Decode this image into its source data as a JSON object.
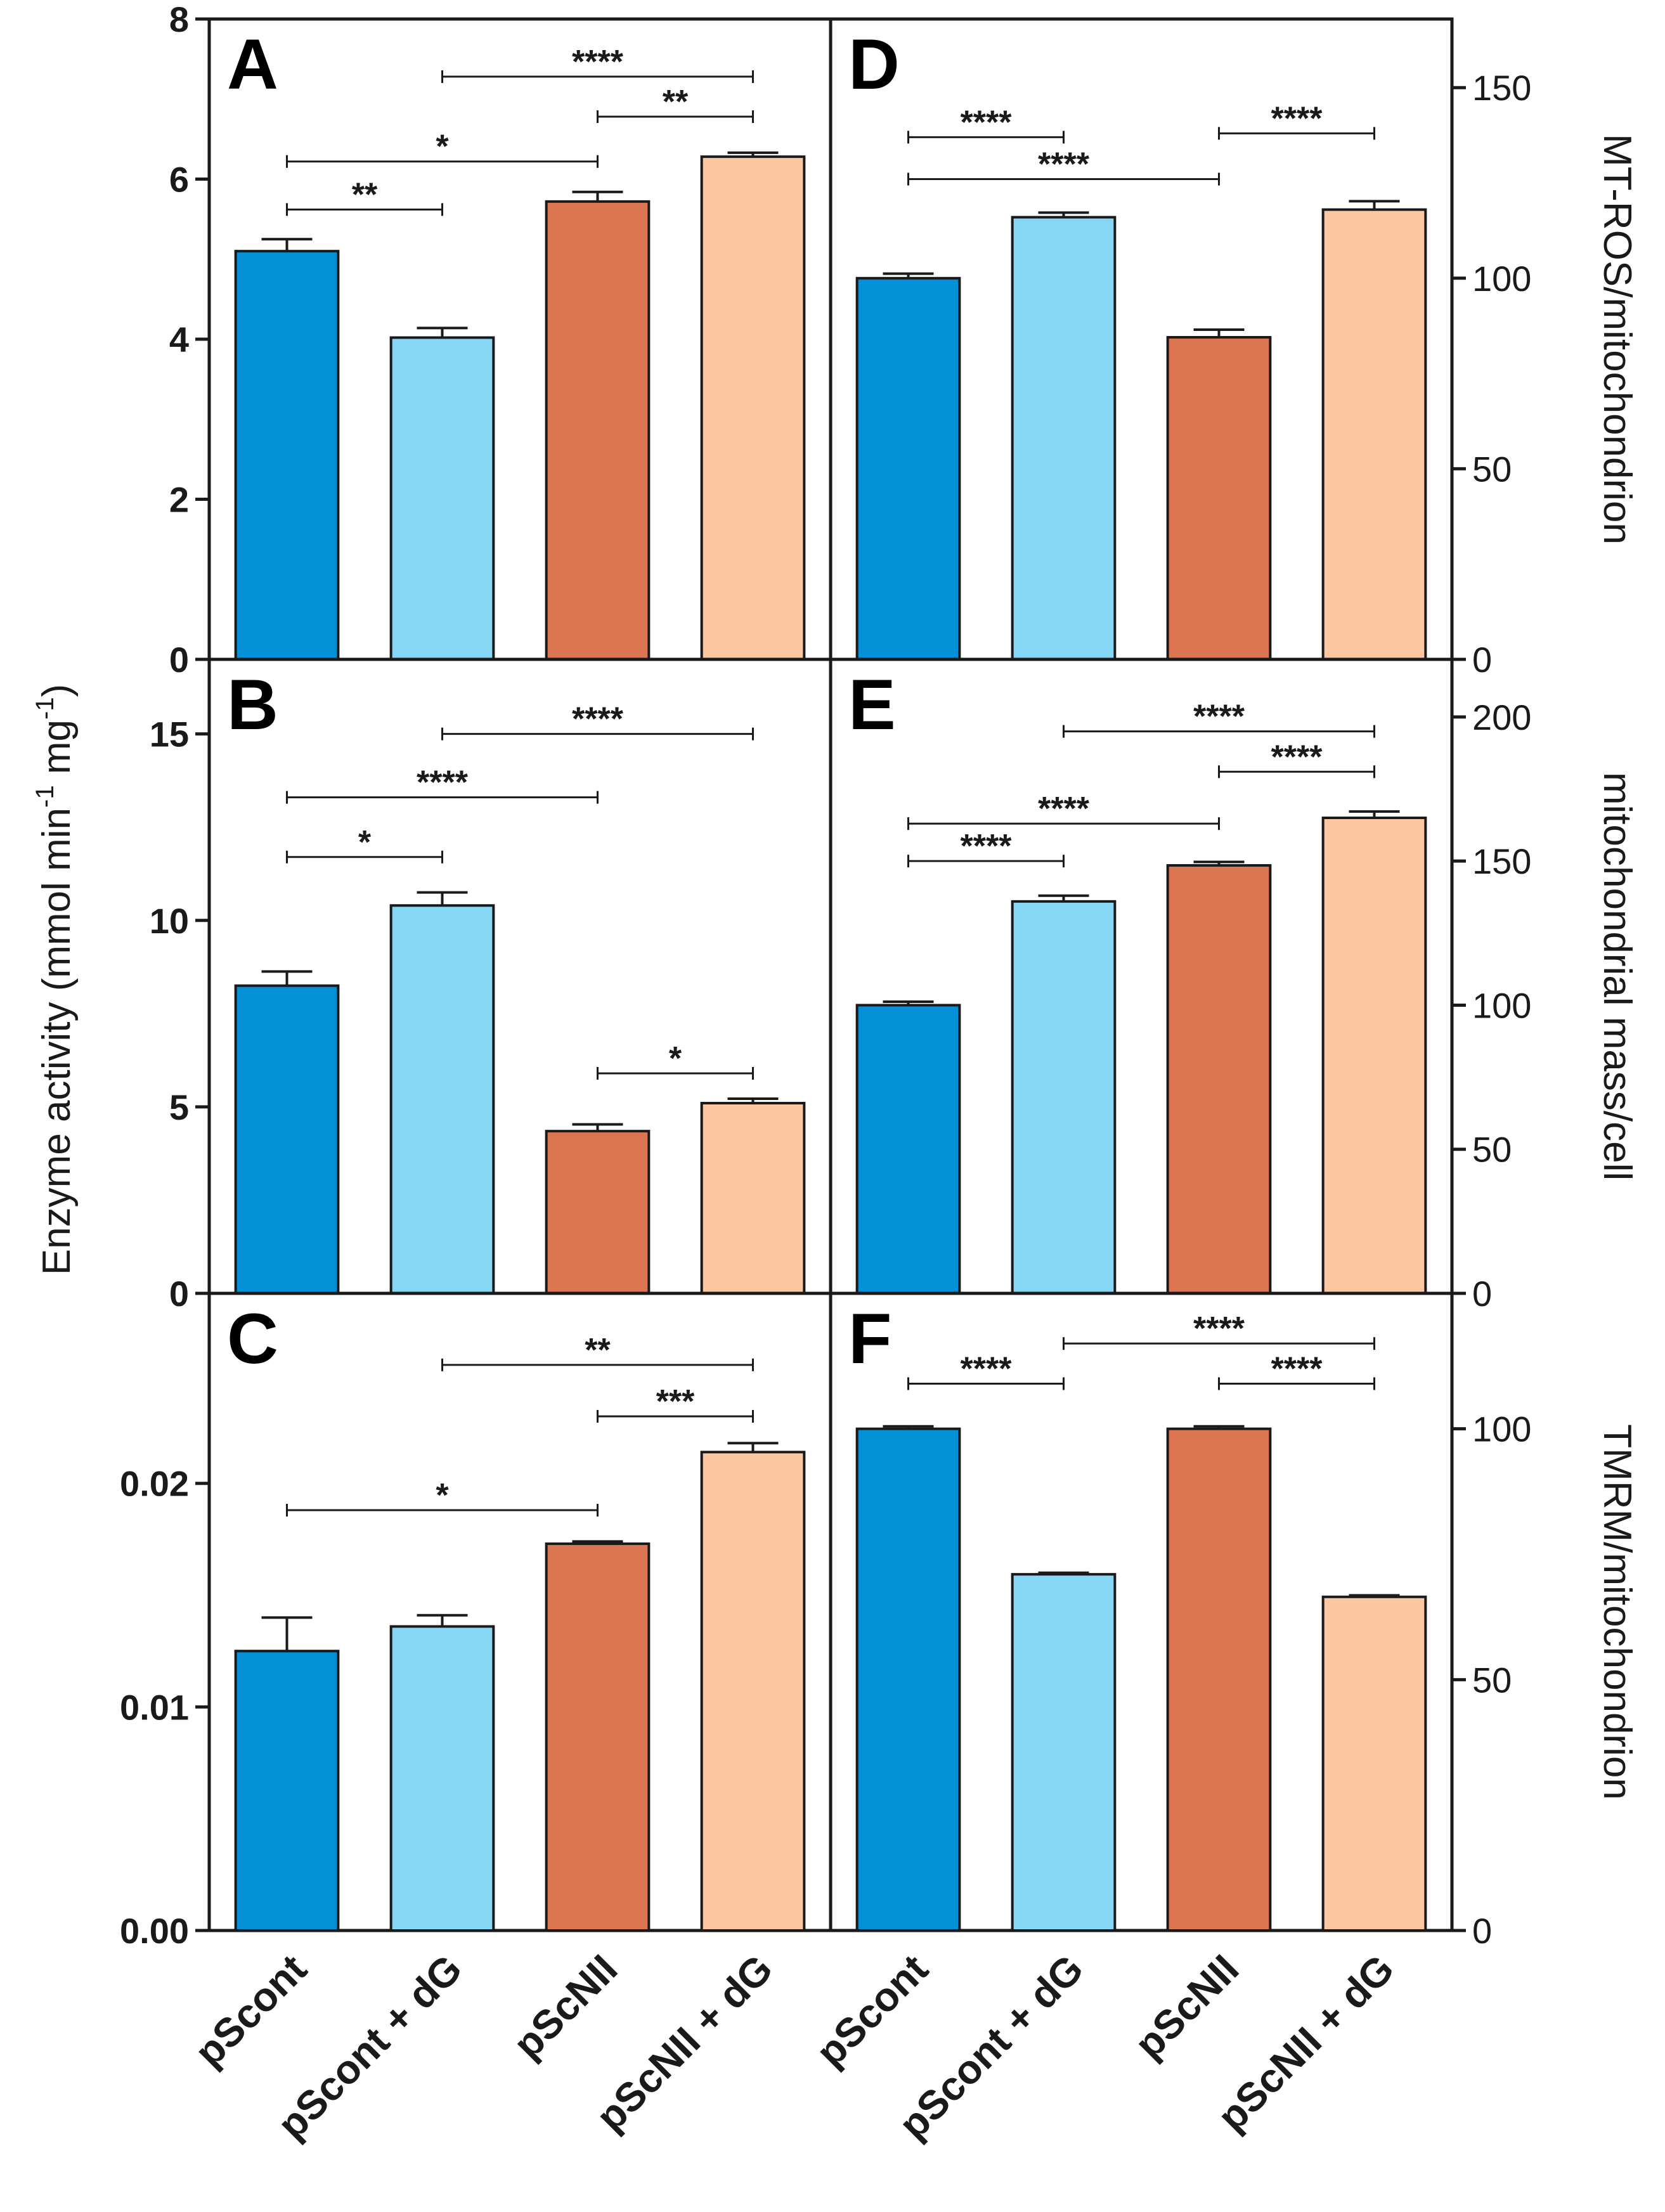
{
  "chart_data": {
    "type": "bar",
    "categories": [
      "pScont",
      "pScont + dG",
      "pScNII",
      "pScNII + dG"
    ],
    "colors": [
      "#0390d6",
      "#86d6f6",
      "#dc7552",
      "#fcc7a1"
    ],
    "left_axis_label": "Enzyme activity (mmol min",
    "left_axis_sup1": "-1",
    "left_axis_mid": " mg",
    "left_axis_sup2": "-1",
    "left_axis_end": ")",
    "panels": [
      {
        "letter": "A",
        "side": "left",
        "row": 0,
        "ylim": [
          0,
          8
        ],
        "ticks": [
          0,
          2,
          4,
          6,
          8
        ],
        "tick_labels": [
          "0",
          "2",
          "4",
          "6",
          "8"
        ],
        "values": [
          5.1,
          4.02,
          5.72,
          6.28
        ],
        "errors": [
          0.15,
          0.12,
          0.12,
          0.05
        ],
        "ylabel": "",
        "sig": [
          {
            "from": 0,
            "to": 1,
            "y": 5.62,
            "label": "**"
          },
          {
            "from": 0,
            "to": 2,
            "y": 6.22,
            "label": "*"
          },
          {
            "from": 2,
            "to": 3,
            "y": 6.78,
            "label": "**"
          },
          {
            "from": 1,
            "to": 3,
            "y": 7.28,
            "label": "****"
          }
        ]
      },
      {
        "letter": "B",
        "side": "left",
        "row": 1,
        "ylim": [
          0,
          17
        ],
        "ticks": [
          0,
          5,
          10,
          15
        ],
        "tick_labels": [
          "0",
          "5",
          "10",
          "15"
        ],
        "values": [
          8.25,
          10.4,
          4.35,
          5.1
        ],
        "errors": [
          0.38,
          0.35,
          0.18,
          0.12
        ],
        "ylabel": "",
        "sig": [
          {
            "from": 0,
            "to": 1,
            "y": 11.7,
            "label": "*"
          },
          {
            "from": 0,
            "to": 2,
            "y": 13.3,
            "label": "****"
          },
          {
            "from": 1,
            "to": 3,
            "y": 15.0,
            "label": "****"
          },
          {
            "from": 2,
            "to": 3,
            "y": 5.9,
            "label": "*"
          }
        ]
      },
      {
        "letter": "C",
        "side": "left",
        "row": 2,
        "ylim": [
          0,
          0.0285
        ],
        "ticks": [
          0,
          0.01,
          0.02
        ],
        "tick_labels": [
          "0.00",
          "0.01",
          "0.02"
        ],
        "values": [
          0.0125,
          0.0136,
          0.0173,
          0.0214
        ],
        "errors": [
          0.0015,
          0.0005,
          0.0001,
          0.0004
        ],
        "ylabel": "",
        "sig": [
          {
            "from": 0,
            "to": 2,
            "y": 0.0188,
            "label": "*"
          },
          {
            "from": 2,
            "to": 3,
            "y": 0.023,
            "label": "***"
          },
          {
            "from": 1,
            "to": 3,
            "y": 0.0253,
            "label": "**"
          }
        ]
      },
      {
        "letter": "D",
        "side": "right",
        "row": 0,
        "ylim": [
          0,
          168
        ],
        "ticks": [
          0,
          50,
          100,
          150
        ],
        "tick_labels": [
          "0",
          "50",
          "100",
          "150"
        ],
        "values": [
          100,
          116,
          84.5,
          118
        ],
        "errors": [
          1.2,
          1.2,
          2.0,
          2.2
        ],
        "ylabel": "MT-ROS/mitochondrion",
        "sig": [
          {
            "from": 0,
            "to": 1,
            "y": 137,
            "label": "****"
          },
          {
            "from": 0,
            "to": 2,
            "y": 126,
            "label": "****"
          },
          {
            "from": 2,
            "to": 3,
            "y": 138,
            "label": "****"
          }
        ]
      },
      {
        "letter": "E",
        "side": "right",
        "row": 1,
        "ylim": [
          0,
          220
        ],
        "ticks": [
          0,
          50,
          100,
          150,
          200
        ],
        "tick_labels": [
          "0",
          "50",
          "100",
          "150",
          "200"
        ],
        "values": [
          100,
          136,
          148.5,
          165
        ],
        "errors": [
          1.2,
          2.0,
          1.2,
          2.2
        ],
        "ylabel": "mitochondrial mass/cell",
        "sig": [
          {
            "from": 0,
            "to": 1,
            "y": 150,
            "label": "****"
          },
          {
            "from": 0,
            "to": 2,
            "y": 163,
            "label": "****"
          },
          {
            "from": 2,
            "to": 3,
            "y": 181,
            "label": "****"
          },
          {
            "from": 1,
            "to": 3,
            "y": 195,
            "label": "****"
          }
        ]
      },
      {
        "letter": "F",
        "side": "right",
        "row": 2,
        "ylim": [
          0,
          127
        ],
        "ticks": [
          0,
          50,
          100
        ],
        "tick_labels": [
          "0",
          "50",
          "100"
        ],
        "values": [
          100,
          71,
          100,
          66.5
        ],
        "errors": [
          0.5,
          0.3,
          0.5,
          0.3
        ],
        "ylabel": "TMRM/mitochondrion",
        "sig": [
          {
            "from": 0,
            "to": 1,
            "y": 109,
            "label": "****"
          },
          {
            "from": 2,
            "to": 3,
            "y": 109,
            "label": "****"
          },
          {
            "from": 1,
            "to": 3,
            "y": 117,
            "label": "****"
          }
        ]
      }
    ]
  }
}
